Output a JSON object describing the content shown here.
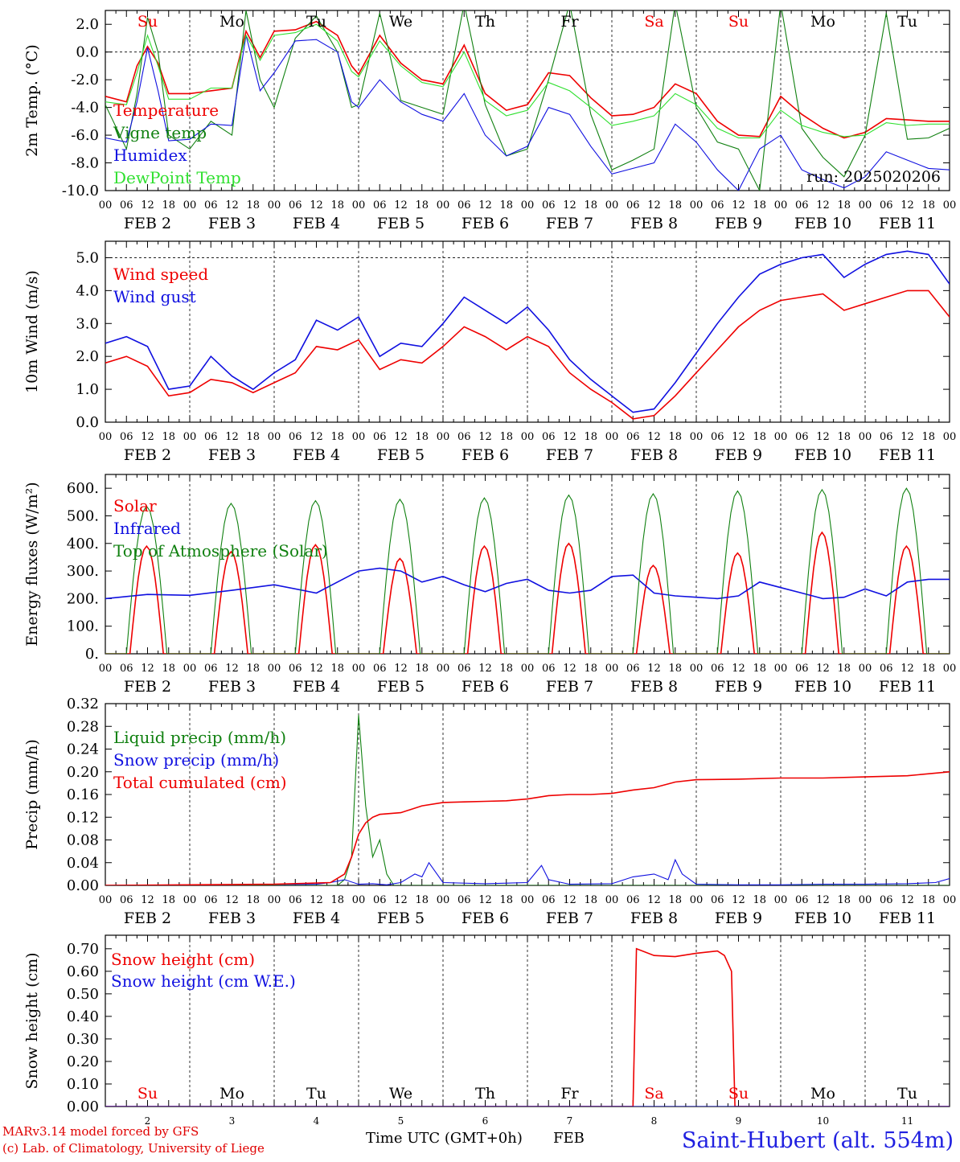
{
  "colors": {
    "red": "#ee0000",
    "darkgreen": "#108010",
    "blue": "#1010e0",
    "lightgreen": "#30e030",
    "axis": "#000000"
  },
  "shared_x": {
    "unit_hours_from": "2 FEB 00 UTC",
    "range_hours": [
      0,
      240
    ],
    "hour_tick_labels": [
      "00",
      "06",
      "12",
      "18"
    ],
    "date_labels": [
      "FEB  2",
      "FEB  3",
      "FEB  4",
      "FEB  5",
      "FEB  6",
      "FEB  7",
      "FEB  8",
      "FEB  9",
      "FEB 10",
      "FEB 11"
    ],
    "day_names": [
      "Su",
      "Mo",
      "Tu",
      "We",
      "Th",
      "Fr",
      "Sa",
      "Su",
      "Mo",
      "Tu"
    ],
    "day_name_colors": [
      "red",
      "black",
      "black",
      "black",
      "black",
      "black",
      "red",
      "red",
      "black",
      "black"
    ],
    "bottom_day_numbers": [
      "2",
      "3",
      "4",
      "5",
      "6",
      "7",
      "8",
      "9",
      "10",
      "11"
    ]
  },
  "chart_data": [
    {
      "type": "line",
      "ylabel": "2m Temp. (°C)",
      "ylim": [
        -10,
        3
      ],
      "yticks": [
        "2.0",
        "0.0",
        "-2.0",
        "-4.0",
        "-6.0",
        "-8.0",
        "-10.0"
      ],
      "ytick_values": [
        2,
        0,
        -2,
        -4,
        -6,
        -8,
        -10
      ],
      "zero_line": 0,
      "annotation": "run: 2025020206",
      "series": [
        {
          "name": "Temperature",
          "color": "red",
          "x": [
            0,
            6,
            9,
            12,
            15,
            18,
            24,
            30,
            36,
            40,
            44,
            48,
            54,
            60,
            66,
            70,
            72,
            78,
            84,
            90,
            96,
            102,
            108,
            114,
            120,
            126,
            132,
            138,
            144,
            150,
            156,
            162,
            168,
            174,
            180,
            186,
            192,
            198,
            204,
            210,
            216,
            222,
            228,
            234,
            240
          ],
          "values": [
            -3.2,
            -3.6,
            -1,
            0.4,
            -0.8,
            -3,
            -3,
            -2.8,
            -2.6,
            1.5,
            -0.4,
            1.5,
            1.6,
            2.2,
            1.2,
            -1,
            -1.6,
            1.2,
            -0.8,
            -2,
            -2.3,
            0.5,
            -3,
            -4.2,
            -3.8,
            -1.5,
            -1.7,
            -3.3,
            -4.6,
            -4.5,
            -4,
            -2.3,
            -3,
            -5,
            -6,
            -6.1,
            -3.2,
            -4.5,
            -5.5,
            -6.2,
            -5.8,
            -4.8,
            -4.9,
            -5,
            -5
          ]
        },
        {
          "name": "Vigne temp",
          "color": "darkgreen",
          "x": [
            0,
            6,
            9,
            12,
            15,
            18,
            24,
            30,
            36,
            40,
            44,
            48,
            54,
            60,
            66,
            70,
            72,
            78,
            84,
            90,
            96,
            102,
            108,
            114,
            120,
            126,
            132,
            138,
            144,
            150,
            156,
            162,
            168,
            174,
            180,
            186,
            192,
            198,
            204,
            210,
            216,
            222,
            228,
            234,
            240
          ],
          "values": [
            -3.8,
            -7,
            -3,
            2.5,
            0,
            -6,
            -7,
            -5,
            -6,
            3,
            -2,
            -4,
            1,
            2.6,
            0,
            -4,
            -3.8,
            2.8,
            -3.5,
            -4,
            -4.5,
            3.5,
            -3.8,
            -7.5,
            -7,
            -2,
            3.5,
            -4.5,
            -8.5,
            -7.8,
            -7,
            3.5,
            -4,
            -6.5,
            -7,
            -10,
            3.5,
            -5.5,
            -7.6,
            -9,
            -6,
            2.8,
            -6.3,
            -6.2,
            -5.5
          ]
        },
        {
          "name": "Humidex",
          "color": "blue",
          "x": [
            0,
            6,
            9,
            12,
            15,
            18,
            24,
            30,
            36,
            40,
            44,
            48,
            54,
            60,
            66,
            70,
            72,
            78,
            84,
            90,
            96,
            102,
            108,
            114,
            120,
            126,
            132,
            138,
            144,
            150,
            156,
            162,
            168,
            174,
            180,
            186,
            192,
            198,
            204,
            210,
            216,
            222,
            228,
            234,
            240
          ],
          "values": [
            -6.2,
            -6.5,
            -3.6,
            0.3,
            -2.8,
            -6.4,
            -6.3,
            -5.2,
            -5.3,
            1.2,
            -2.8,
            -1.5,
            0.8,
            0.9,
            0,
            -3.6,
            -4,
            -2,
            -3.6,
            -4.5,
            -5,
            -3,
            -6,
            -7.5,
            -6.8,
            -4,
            -4.5,
            -6.8,
            -8.8,
            -8.4,
            -8,
            -5.2,
            -6.5,
            -8.5,
            -10,
            -7,
            -6,
            -8.5,
            -9.2,
            -9.8,
            -9,
            -7.2,
            -7.8,
            -8.4,
            -8.5
          ]
        },
        {
          "name": "DewPoint Temp",
          "color": "lightgreen",
          "x": [
            0,
            6,
            9,
            12,
            15,
            18,
            24,
            30,
            36,
            40,
            44,
            48,
            54,
            60,
            66,
            70,
            72,
            78,
            84,
            90,
            96,
            102,
            108,
            114,
            120,
            126,
            132,
            138,
            144,
            150,
            156,
            162,
            168,
            174,
            180,
            186,
            192,
            198,
            204,
            210,
            216,
            222,
            228,
            234,
            240
          ],
          "values": [
            -3.6,
            -3.8,
            -1.5,
            1.2,
            -1,
            -3.4,
            -3.4,
            -2.6,
            -2.6,
            1.2,
            -0.6,
            1.2,
            1.4,
            2,
            0.8,
            -1.4,
            -1.8,
            0.8,
            -1,
            -2.2,
            -2.5,
            0,
            -3.5,
            -4.6,
            -4.2,
            -2.2,
            -2.8,
            -4,
            -5.3,
            -5,
            -4.6,
            -3,
            -3.8,
            -5.5,
            -6.2,
            -6.2,
            -4.2,
            -5.3,
            -5.8,
            -6.1,
            -6,
            -5.1,
            -5.3,
            -5.2,
            -5.2
          ]
        }
      ]
    },
    {
      "type": "line",
      "ylabel": "10m Wind (m/s)",
      "ylim": [
        0,
        5.5
      ],
      "yticks": [
        "5.0",
        "4.0",
        "3.0",
        "2.0",
        "1.0",
        "0.0"
      ],
      "ytick_values": [
        5,
        4,
        3,
        2,
        1,
        0
      ],
      "dashed_line": 5,
      "series": [
        {
          "name": "Wind speed",
          "color": "red",
          "x": [
            0,
            6,
            12,
            18,
            24,
            30,
            36,
            42,
            48,
            54,
            60,
            66,
            72,
            78,
            84,
            90,
            96,
            102,
            108,
            114,
            120,
            126,
            132,
            138,
            144,
            150,
            156,
            162,
            168,
            174,
            180,
            186,
            192,
            198,
            204,
            210,
            216,
            222,
            228,
            234,
            240
          ],
          "values": [
            1.8,
            2,
            1.7,
            0.8,
            0.9,
            1.3,
            1.2,
            0.9,
            1.2,
            1.5,
            2.3,
            2.2,
            2.5,
            1.6,
            1.9,
            1.8,
            2.3,
            2.9,
            2.6,
            2.2,
            2.6,
            2.3,
            1.5,
            1.0,
            0.6,
            0.1,
            0.2,
            0.8,
            1.5,
            2.2,
            2.9,
            3.4,
            3.7,
            3.8,
            3.9,
            3.4,
            3.6,
            3.8,
            4.0,
            4.0,
            3.2
          ]
        },
        {
          "name": "Wind gust",
          "color": "blue",
          "x": [
            0,
            6,
            12,
            18,
            24,
            30,
            36,
            42,
            48,
            54,
            60,
            66,
            72,
            78,
            84,
            90,
            96,
            102,
            108,
            114,
            120,
            126,
            132,
            138,
            144,
            150,
            156,
            162,
            168,
            174,
            180,
            186,
            192,
            198,
            204,
            210,
            216,
            222,
            228,
            234,
            240
          ],
          "values": [
            2.4,
            2.6,
            2.3,
            1,
            1.1,
            2,
            1.4,
            1,
            1.5,
            1.9,
            3.1,
            2.8,
            3.2,
            2.0,
            2.4,
            2.3,
            3.0,
            3.8,
            3.4,
            3.0,
            3.5,
            2.8,
            1.9,
            1.3,
            0.8,
            0.3,
            0.4,
            1.2,
            2.1,
            3.0,
            3.8,
            4.5,
            4.8,
            5.0,
            5.1,
            4.4,
            4.8,
            5.1,
            5.2,
            5.1,
            4.2
          ]
        }
      ]
    },
    {
      "type": "line",
      "ylabel": "Energy fluxes (W/m²)",
      "ylim": [
        0,
        650
      ],
      "yticks": [
        "600.",
        "500.",
        "400.",
        "300.",
        "200.",
        "100.",
        "0."
      ],
      "ytick_values": [
        600,
        500,
        400,
        300,
        200,
        100,
        0
      ],
      "series": [
        {
          "name": "Solar",
          "color": "red",
          "days_peak": [
            390,
            370,
            395,
            345,
            390,
            400,
            320,
            365,
            440,
            390
          ]
        },
        {
          "name": "Infrared",
          "color": "blue",
          "x": [
            0,
            12,
            24,
            36,
            48,
            60,
            72,
            78,
            84,
            90,
            96,
            102,
            108,
            114,
            120,
            126,
            132,
            138,
            144,
            150,
            156,
            162,
            168,
            174,
            180,
            186,
            192,
            198,
            204,
            210,
            216,
            222,
            228,
            234,
            240
          ],
          "values": [
            200,
            215,
            212,
            230,
            250,
            220,
            300,
            310,
            300,
            260,
            280,
            250,
            225,
            255,
            270,
            230,
            220,
            230,
            280,
            285,
            220,
            210,
            205,
            200,
            210,
            260,
            240,
            220,
            200,
            205,
            235,
            210,
            260,
            270,
            270
          ]
        },
        {
          "name": "Top of Atmosphere (Solar)",
          "color": "darkgreen",
          "days_peak": [
            535,
            545,
            555,
            560,
            565,
            575,
            580,
            590,
            595,
            600
          ]
        }
      ]
    },
    {
      "type": "line",
      "ylabel": "Precip (mm/h)",
      "ylim": [
        0,
        0.32
      ],
      "yticks": [
        "0.32",
        "0.28",
        "0.24",
        "0.20",
        "0.16",
        "0.12",
        "0.08",
        "0.04",
        "0.00"
      ],
      "ytick_values": [
        0.32,
        0.28,
        0.24,
        0.2,
        0.16,
        0.12,
        0.08,
        0.04,
        0
      ],
      "series": [
        {
          "name": "Liquid precip (mm/h)",
          "color": "darkgreen",
          "x": [
            0,
            66,
            68,
            70,
            72,
            74,
            76,
            78,
            80,
            82,
            84,
            240
          ],
          "values": [
            0,
            0,
            0.01,
            0.05,
            0.3,
            0.14,
            0.05,
            0.08,
            0.02,
            0,
            0,
            0
          ]
        },
        {
          "name": "Snow precip (mm/h)",
          "color": "blue",
          "x": [
            0,
            24,
            60,
            64,
            68,
            72,
            76,
            80,
            84,
            88,
            90,
            92,
            96,
            108,
            120,
            122,
            124,
            126,
            132,
            144,
            150,
            156,
            160,
            162,
            164,
            168,
            180,
            192,
            204,
            216,
            228,
            236,
            240
          ],
          "values": [
            0,
            0.001,
            0.002,
            0.005,
            0.01,
            0.002,
            0.003,
            0.001,
            0.005,
            0.02,
            0.015,
            0.04,
            0.005,
            0.003,
            0.005,
            0.02,
            0.035,
            0.01,
            0.002,
            0.003,
            0.015,
            0.02,
            0.01,
            0.045,
            0.02,
            0.002,
            0.001,
            0.001,
            0.002,
            0.002,
            0.003,
            0.005,
            0.012
          ]
        },
        {
          "name": "Total cumulated (cm)",
          "color": "red",
          "x": [
            0,
            48,
            64,
            68,
            70,
            72,
            74,
            76,
            78,
            84,
            90,
            96,
            102,
            108,
            114,
            120,
            126,
            132,
            138,
            144,
            150,
            156,
            162,
            168,
            180,
            192,
            204,
            216,
            228,
            240
          ],
          "values": [
            0,
            0.002,
            0.005,
            0.02,
            0.05,
            0.09,
            0.11,
            0.12,
            0.125,
            0.128,
            0.14,
            0.146,
            0.147,
            0.148,
            0.149,
            0.152,
            0.158,
            0.16,
            0.16,
            0.162,
            0.168,
            0.172,
            0.182,
            0.186,
            0.187,
            0.189,
            0.189,
            0.191,
            0.193,
            0.2
          ]
        }
      ]
    },
    {
      "type": "line",
      "ylabel": "Snow height (cm)",
      "ylim": [
        0,
        0.76
      ],
      "yticks": [
        "0.70",
        "0.60",
        "0.50",
        "0.40",
        "0.30",
        "0.20",
        "0.10",
        "0.00"
      ],
      "ytick_values": [
        0.7,
        0.6,
        0.5,
        0.4,
        0.3,
        0.2,
        0.1,
        0
      ],
      "series": [
        {
          "name": "Snow height (cm)",
          "color": "red",
          "x": [
            0,
            150,
            151,
            156,
            162,
            168,
            174,
            176,
            178,
            179,
            240
          ],
          "values": [
            0,
            0,
            0.7,
            0.67,
            0.665,
            0.68,
            0.69,
            0.67,
            0.6,
            0,
            0
          ]
        },
        {
          "name": "Snow height (cm W.E.)",
          "color": "blue",
          "x": [
            0,
            240
          ],
          "values": [
            0,
            0
          ]
        }
      ]
    }
  ],
  "footer": {
    "model_line": "MARv3.14 model forced by GFS",
    "copyright_line": "(c) Lab. of Climatology, University of Liege",
    "xlabel": "Time UTC (GMT+0h)",
    "month": "FEB",
    "station": "Saint-Hubert (alt. 554m)"
  }
}
